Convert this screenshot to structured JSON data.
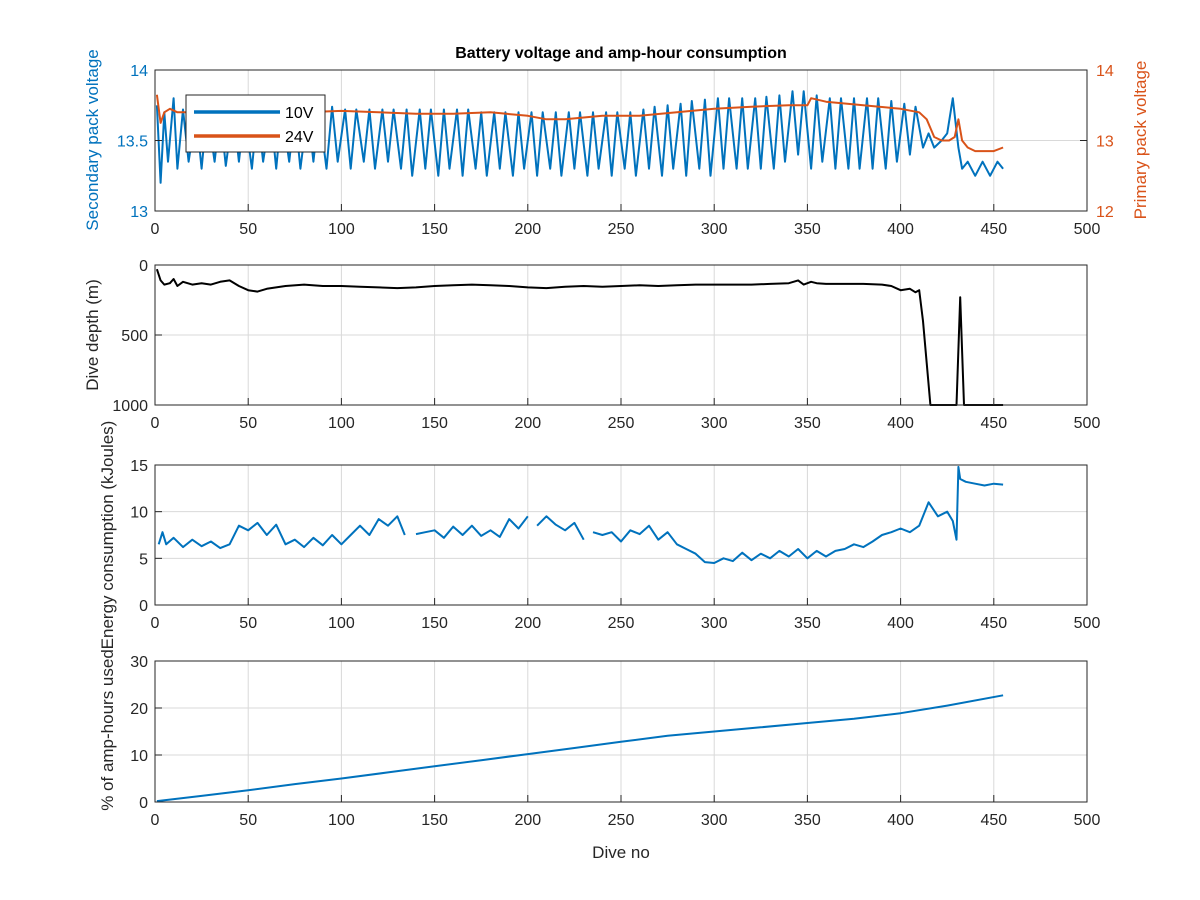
{
  "chart_data": [
    {
      "type": "line",
      "title": "Battery voltage and amp-hour consumption",
      "xlabel": "",
      "ylabel": "Secondary pack voltage",
      "ylabel_right": "Primary pack voltage",
      "xlim": [
        0,
        500
      ],
      "ylim": [
        13,
        14
      ],
      "ylim_right": [
        12,
        14
      ],
      "xticks": [
        0,
        50,
        100,
        150,
        200,
        250,
        300,
        350,
        400,
        450,
        500
      ],
      "yticks": [
        13,
        13.5,
        14
      ],
      "yticks_right": [
        12,
        13,
        14
      ],
      "grid": true,
      "legend": "top-left",
      "series": [
        {
          "name": "10V",
          "axis": "left",
          "color": "#0072BD",
          "x": [
            1,
            3,
            5,
            7,
            10,
            12,
            15,
            18,
            22,
            25,
            28,
            32,
            35,
            38,
            42,
            45,
            48,
            52,
            55,
            58,
            62,
            65,
            68,
            72,
            75,
            78,
            82,
            85,
            88,
            92,
            95,
            98,
            102,
            105,
            108,
            112,
            115,
            118,
            122,
            125,
            128,
            132,
            135,
            138,
            142,
            145,
            148,
            152,
            155,
            158,
            162,
            165,
            168,
            172,
            175,
            178,
            182,
            185,
            188,
            192,
            195,
            198,
            202,
            205,
            208,
            212,
            215,
            218,
            222,
            225,
            228,
            232,
            235,
            238,
            242,
            245,
            248,
            252,
            255,
            258,
            262,
            265,
            268,
            272,
            275,
            278,
            282,
            285,
            288,
            292,
            295,
            298,
            302,
            305,
            308,
            312,
            315,
            318,
            322,
            325,
            328,
            332,
            335,
            338,
            342,
            345,
            348,
            352,
            355,
            358,
            362,
            365,
            368,
            372,
            375,
            378,
            382,
            385,
            388,
            392,
            395,
            398,
            402,
            405,
            408,
            412,
            415,
            418,
            422,
            425,
            428,
            431,
            433,
            436,
            440,
            444,
            448,
            452,
            455
          ],
          "y": [
            13.75,
            13.2,
            13.7,
            13.35,
            13.8,
            13.3,
            13.72,
            13.35,
            13.7,
            13.3,
            13.72,
            13.35,
            13.7,
            13.32,
            13.72,
            13.35,
            13.7,
            13.3,
            13.72,
            13.35,
            13.7,
            13.3,
            13.72,
            13.35,
            13.7,
            13.3,
            13.72,
            13.35,
            13.72,
            13.3,
            13.74,
            13.35,
            13.72,
            13.3,
            13.72,
            13.35,
            13.72,
            13.3,
            13.72,
            13.35,
            13.72,
            13.3,
            13.72,
            13.25,
            13.72,
            13.3,
            13.72,
            13.25,
            13.72,
            13.3,
            13.72,
            13.25,
            13.72,
            13.3,
            13.7,
            13.25,
            13.7,
            13.3,
            13.7,
            13.25,
            13.7,
            13.3,
            13.7,
            13.25,
            13.7,
            13.3,
            13.7,
            13.25,
            13.7,
            13.3,
            13.7,
            13.25,
            13.7,
            13.3,
            13.7,
            13.25,
            13.7,
            13.3,
            13.7,
            13.25,
            13.72,
            13.3,
            13.74,
            13.25,
            13.75,
            13.3,
            13.76,
            13.25,
            13.78,
            13.3,
            13.79,
            13.25,
            13.8,
            13.3,
            13.8,
            13.3,
            13.8,
            13.3,
            13.8,
            13.3,
            13.81,
            13.3,
            13.82,
            13.35,
            13.85,
            13.4,
            13.85,
            13.3,
            13.82,
            13.35,
            13.8,
            13.3,
            13.8,
            13.3,
            13.8,
            13.3,
            13.8,
            13.3,
            13.8,
            13.3,
            13.78,
            13.35,
            13.76,
            13.4,
            13.74,
            13.45,
            13.55,
            13.45,
            13.5,
            13.55,
            13.8,
            13.45,
            13.3,
            13.35,
            13.25,
            13.35,
            13.25,
            13.35,
            13.3
          ]
        },
        {
          "name": "24V",
          "axis": "right",
          "color": "#D95319",
          "x": [
            1,
            3,
            5,
            8,
            12,
            20,
            40,
            60,
            80,
            100,
            120,
            140,
            160,
            180,
            200,
            210,
            220,
            240,
            260,
            280,
            300,
            320,
            340,
            350,
            352,
            360,
            380,
            400,
            410,
            414,
            418,
            422,
            426,
            429,
            431,
            433,
            436,
            440,
            445,
            450,
            455
          ],
          "y": [
            13.65,
            13.25,
            13.4,
            13.45,
            13.4,
            13.4,
            13.42,
            13.4,
            13.4,
            13.42,
            13.4,
            13.38,
            13.38,
            13.4,
            13.35,
            13.3,
            13.3,
            13.35,
            13.35,
            13.4,
            13.45,
            13.48,
            13.5,
            13.5,
            13.6,
            13.55,
            13.5,
            13.45,
            13.4,
            13.3,
            13.05,
            13.0,
            13.0,
            13.05,
            13.3,
            13.0,
            12.9,
            12.85,
            12.85,
            12.85,
            12.9
          ]
        }
      ]
    },
    {
      "type": "line",
      "xlabel": "",
      "ylabel": "Dive depth (m)",
      "xlim": [
        0,
        500
      ],
      "ylim": [
        0,
        1000
      ],
      "y_reversed": true,
      "xticks": [
        0,
        50,
        100,
        150,
        200,
        250,
        300,
        350,
        400,
        450,
        500
      ],
      "yticks": [
        0,
        500,
        1000
      ],
      "ytick_labels": [
        "0",
        "500",
        "1000"
      ],
      "grid": true,
      "series": [
        {
          "color": "#000000",
          "x": [
            1,
            3,
            5,
            8,
            10,
            12,
            15,
            20,
            25,
            30,
            35,
            40,
            45,
            50,
            55,
            60,
            70,
            80,
            90,
            100,
            110,
            120,
            130,
            140,
            150,
            160,
            170,
            180,
            190,
            200,
            210,
            220,
            230,
            240,
            250,
            260,
            270,
            280,
            290,
            300,
            310,
            320,
            330,
            340,
            345,
            348,
            350,
            352,
            355,
            360,
            370,
            380,
            390,
            395,
            400,
            405,
            408,
            410,
            412,
            414,
            416,
            418,
            420,
            425,
            428,
            430,
            432,
            434,
            436,
            440,
            445,
            450,
            455
          ],
          "y": [
            30,
            110,
            140,
            130,
            100,
            150,
            120,
            140,
            130,
            140,
            120,
            110,
            150,
            180,
            190,
            170,
            150,
            140,
            150,
            150,
            155,
            160,
            165,
            160,
            150,
            145,
            140,
            145,
            150,
            160,
            165,
            155,
            150,
            155,
            150,
            145,
            150,
            145,
            140,
            140,
            140,
            140,
            135,
            130,
            110,
            140,
            130,
            120,
            130,
            135,
            135,
            135,
            140,
            150,
            180,
            170,
            195,
            180,
            400,
            700,
            1000,
            1000,
            1000,
            1000,
            1000,
            1000,
            230,
            1000,
            1000,
            1000,
            1000,
            1000,
            1000
          ]
        }
      ]
    },
    {
      "type": "line",
      "xlabel": "",
      "ylabel": "Energy consumption (kJoules)",
      "xlim": [
        0,
        500
      ],
      "ylim": [
        0,
        15
      ],
      "xticks": [
        0,
        50,
        100,
        150,
        200,
        250,
        300,
        350,
        400,
        450,
        500
      ],
      "yticks": [
        0,
        5,
        10,
        15
      ],
      "grid": true,
      "series": [
        {
          "color": "#0072BD",
          "x": [
            2,
            4,
            6,
            10,
            15,
            20,
            25,
            30,
            35,
            40,
            45,
            50,
            55,
            60,
            65,
            70,
            75,
            80,
            85,
            90,
            95,
            100,
            105,
            110,
            115,
            120,
            125,
            130,
            134,
            null,
            140,
            145,
            150,
            155,
            160,
            165,
            170,
            175,
            180,
            185,
            190,
            195,
            200,
            null,
            205,
            210,
            215,
            220,
            225,
            230,
            null,
            235,
            240,
            245,
            250,
            255,
            260,
            265,
            270,
            275,
            280,
            285,
            290,
            295,
            300,
            305,
            310,
            315,
            320,
            325,
            330,
            335,
            340,
            345,
            350,
            355,
            360,
            365,
            370,
            375,
            380,
            385,
            390,
            395,
            400,
            405,
            410,
            415,
            420,
            425,
            428,
            430,
            431,
            432,
            435,
            440,
            445,
            450,
            455
          ],
          "y": [
            6.5,
            7.8,
            6.5,
            7.2,
            6.2,
            7.0,
            6.3,
            6.8,
            6.1,
            6.5,
            8.5,
            8.0,
            8.8,
            7.5,
            8.6,
            6.5,
            7.0,
            6.2,
            7.2,
            6.4,
            7.5,
            6.5,
            7.5,
            8.5,
            7.5,
            9.2,
            8.5,
            9.5,
            7.5,
            null,
            7.6,
            7.8,
            8.0,
            7.2,
            8.4,
            7.5,
            8.5,
            7.4,
            8.0,
            7.3,
            9.2,
            8.2,
            9.5,
            null,
            8.5,
            9.5,
            8.6,
            8.0,
            8.8,
            7.0,
            null,
            7.8,
            7.5,
            7.8,
            6.8,
            8.0,
            7.6,
            8.5,
            7.0,
            7.8,
            6.5,
            6.0,
            5.5,
            4.6,
            4.5,
            5.0,
            4.7,
            5.6,
            4.8,
            5.5,
            5.0,
            5.8,
            5.2,
            6.0,
            5.0,
            5.8,
            5.2,
            5.8,
            6.0,
            6.5,
            6.2,
            6.8,
            7.5,
            7.8,
            8.2,
            7.8,
            8.5,
            11.0,
            9.5,
            10.0,
            9.0,
            7.0,
            14.8,
            13.5,
            13.2,
            13.0,
            12.8,
            13.0,
            12.9
          ]
        }
      ]
    },
    {
      "type": "line",
      "xlabel": "Dive no",
      "ylabel": "% of amp-hours used",
      "xlim": [
        0,
        500
      ],
      "ylim": [
        0,
        30
      ],
      "xticks": [
        0,
        50,
        100,
        150,
        200,
        250,
        300,
        350,
        400,
        450,
        500
      ],
      "yticks": [
        0,
        10,
        20,
        30
      ],
      "grid": true,
      "series": [
        {
          "color": "#0072BD",
          "x": [
            1,
            25,
            50,
            75,
            100,
            125,
            150,
            175,
            200,
            225,
            250,
            275,
            300,
            325,
            350,
            375,
            400,
            425,
            455
          ],
          "y": [
            0.2,
            1.3,
            2.5,
            3.8,
            5.0,
            6.3,
            7.6,
            8.9,
            10.2,
            11.5,
            12.8,
            14.1,
            15.0,
            15.9,
            16.8,
            17.7,
            18.9,
            20.5,
            22.7
          ]
        }
      ]
    }
  ]
}
